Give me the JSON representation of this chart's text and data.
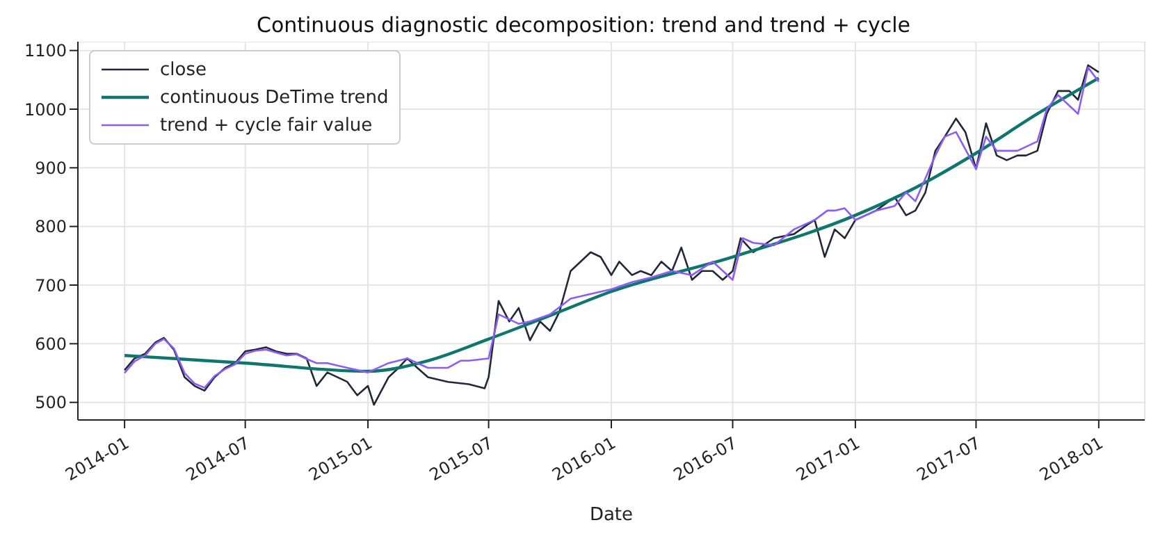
{
  "chart_data": {
    "type": "line",
    "title": "Continuous diagnostic decomposition: trend and trend + cycle",
    "xlabel": "Date",
    "xlim": [
      "2013-10-23",
      "2018-03-11"
    ],
    "xticks": [
      "2014-01",
      "2014-07",
      "2015-01",
      "2015-07",
      "2016-01",
      "2016-07",
      "2017-01",
      "2017-07",
      "2018-01"
    ],
    "ylim": [
      470,
      1115
    ],
    "yticks": [
      500,
      600,
      700,
      800,
      900,
      1000,
      1100
    ],
    "grid": true,
    "legend": "top left",
    "marker": "none",
    "line_style": "solid",
    "series": [
      {
        "name": "close",
        "color": "#1f2937",
        "x": [
          "2014-01-01",
          "2014-01-16",
          "2014-02-01",
          "2014-02-16",
          "2014-03-01",
          "2014-03-16",
          "2014-04-01",
          "2014-04-16",
          "2014-05-01",
          "2014-05-16",
          "2014-06-01",
          "2014-06-16",
          "2014-07-01",
          "2014-07-16",
          "2014-08-01",
          "2014-08-16",
          "2014-09-01",
          "2014-09-16",
          "2014-10-01",
          "2014-10-16",
          "2014-11-01",
          "2014-11-16",
          "2014-12-01",
          "2014-12-16",
          "2015-01-01",
          "2015-01-10",
          "2015-02-01",
          "2015-02-16",
          "2015-03-01",
          "2015-03-16",
          "2015-04-01",
          "2015-05-01",
          "2015-06-01",
          "2015-06-25",
          "2015-07-01",
          "2015-07-16",
          "2015-08-01",
          "2015-08-15",
          "2015-09-01",
          "2015-09-16",
          "2015-10-01",
          "2015-10-15",
          "2015-11-01",
          "2015-11-16",
          "2015-12-01",
          "2015-12-16",
          "2016-01-01",
          "2016-01-13",
          "2016-02-01",
          "2016-02-14",
          "2016-03-01",
          "2016-03-16",
          "2016-04-01",
          "2016-04-15",
          "2016-05-01",
          "2016-05-16",
          "2016-06-01",
          "2016-06-16",
          "2016-07-01",
          "2016-07-13",
          "2016-08-01",
          "2016-09-01",
          "2016-10-01",
          "2016-10-21",
          "2016-11-01",
          "2016-11-16",
          "2016-12-01",
          "2016-12-16",
          "2017-01-01",
          "2017-02-01",
          "2017-03-01",
          "2017-03-18",
          "2017-04-01",
          "2017-04-16",
          "2017-05-01",
          "2017-05-15",
          "2017-06-01",
          "2017-06-15",
          "2017-07-01",
          "2017-07-16",
          "2017-08-01",
          "2017-08-16",
          "2017-09-01",
          "2017-09-14",
          "2017-10-01",
          "2017-10-15",
          "2017-11-01",
          "2017-11-18",
          "2017-12-01",
          "2017-12-16",
          "2018-01-01"
        ],
        "values": [
          555,
          575,
          583,
          602,
          610,
          590,
          543,
          528,
          520,
          543,
          559,
          567,
          587,
          590,
          594,
          587,
          583,
          583,
          575,
          528,
          551,
          543,
          535,
          512,
          528,
          496,
          543,
          559,
          575,
          559,
          543,
          535,
          531,
          524,
          543,
          673,
          638,
          661,
          606,
          638,
          622,
          654,
          724,
          740,
          756,
          748,
          717,
          740,
          717,
          724,
          717,
          740,
          724,
          764,
          709,
          724,
          724,
          709,
          724,
          780,
          756,
          780,
          787,
          803,
          811,
          748,
          795,
          780,
          811,
          827,
          850,
          819,
          827,
          858,
          929,
          953,
          984,
          961,
          898,
          976,
          921,
          913,
          921,
          921,
          929,
          992,
          1031,
          1031,
          1016,
          1075,
          1063
        ]
      },
      {
        "name": "continuous DeTime trend",
        "color": "#0f766e",
        "x": [
          "2014-01-01",
          "2014-07-01",
          "2015-01-01",
          "2015-04-01",
          "2015-07-01",
          "2015-10-01",
          "2016-01-01",
          "2016-07-01",
          "2017-01-01",
          "2017-04-01",
          "2017-07-01",
          "2017-10-01",
          "2018-01-01"
        ],
        "values": [
          580,
          567,
          553,
          571,
          608,
          648,
          689,
          748,
          819,
          866,
          925,
          992,
          1053
        ]
      },
      {
        "name": "trend + cycle fair value",
        "color": "#8b5cf6",
        "x": [
          "2014-01-01",
          "2014-01-16",
          "2014-02-01",
          "2014-02-16",
          "2014-03-01",
          "2014-03-16",
          "2014-04-01",
          "2014-04-16",
          "2014-05-01",
          "2014-05-16",
          "2014-06-01",
          "2014-06-16",
          "2014-07-01",
          "2014-07-16",
          "2014-08-01",
          "2014-08-16",
          "2014-09-01",
          "2014-09-16",
          "2014-10-01",
          "2014-10-16",
          "2014-11-01",
          "2014-12-01",
          "2015-01-01",
          "2015-02-01",
          "2015-03-01",
          "2015-03-16",
          "2015-04-01",
          "2015-05-01",
          "2015-05-20",
          "2015-06-01",
          "2015-07-01",
          "2015-07-16",
          "2015-08-15",
          "2015-09-01",
          "2015-10-01",
          "2015-11-01",
          "2015-12-01",
          "2016-01-01",
          "2016-02-01",
          "2016-03-01",
          "2016-04-01",
          "2016-05-01",
          "2016-06-01",
          "2016-07-01",
          "2016-07-16",
          "2016-08-01",
          "2016-09-01",
          "2016-10-01",
          "2016-11-01",
          "2016-11-20",
          "2016-12-01",
          "2016-12-16",
          "2017-01-01",
          "2017-02-01",
          "2017-03-01",
          "2017-03-18",
          "2017-04-01",
          "2017-05-01",
          "2017-05-15",
          "2017-06-01",
          "2017-07-01",
          "2017-07-16",
          "2017-08-01",
          "2017-09-01",
          "2017-10-01",
          "2017-10-15",
          "2017-11-01",
          "2017-12-01",
          "2017-12-16",
          "2018-01-01"
        ],
        "values": [
          550,
          570,
          580,
          600,
          608,
          592,
          550,
          532,
          525,
          545,
          557,
          565,
          583,
          588,
          590,
          585,
          580,
          582,
          574,
          567,
          567,
          559,
          551,
          567,
          575,
          567,
          559,
          559,
          571,
          571,
          575,
          650,
          634,
          638,
          650,
          677,
          685,
          693,
          705,
          713,
          724,
          717,
          740,
          709,
          780,
          772,
          768,
          795,
          811,
          827,
          827,
          831,
          811,
          827,
          835,
          858,
          843,
          921,
          953,
          961,
          898,
          953,
          929,
          929,
          945,
          1000,
          1024,
          992,
          1071,
          1047
        ]
      }
    ]
  }
}
